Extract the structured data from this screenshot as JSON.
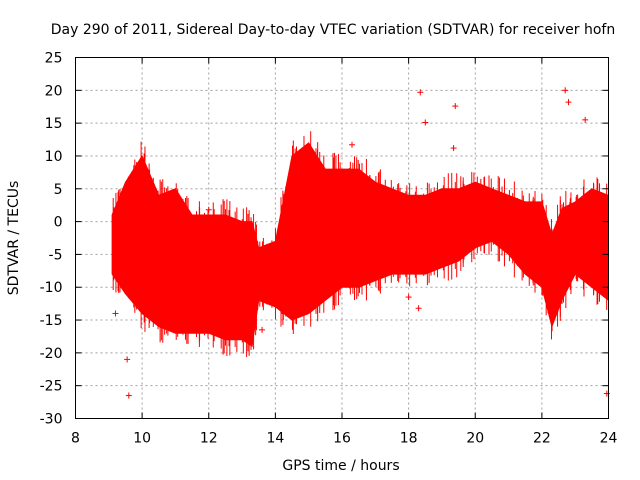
{
  "chart_data": {
    "type": "scatter",
    "title": "Day 290 of 2011, Sidereal Day-to-day VTEC variation (SDTVAR) for receiver hofn",
    "xlabel": "GPS time / hours",
    "ylabel": "SDTVAR / TECUs",
    "xlim": [
      8,
      24
    ],
    "ylim": [
      -30,
      25
    ],
    "x_ticks": [
      8,
      10,
      12,
      14,
      16,
      18,
      20,
      22,
      24
    ],
    "y_ticks": [
      -30,
      -25,
      -20,
      -15,
      -10,
      -5,
      0,
      5,
      10,
      15,
      20,
      25
    ],
    "grid": true,
    "marker": "+",
    "color": "#ff0000",
    "series": [
      {
        "name": "SDTVAR hofn",
        "band_x": [
          9.1,
          9.5,
          10.0,
          10.5,
          11.0,
          11.5,
          12.0,
          12.5,
          13.0,
          13.3,
          13.5,
          14.0,
          14.5,
          15.0,
          15.5,
          16.0,
          16.5,
          17.0,
          17.5,
          18.0,
          18.5,
          19.0,
          19.5,
          20.0,
          20.5,
          21.0,
          21.5,
          22.0,
          22.3,
          22.6,
          23.0,
          23.5,
          24.0
        ],
        "band_upper": [
          1,
          6,
          10,
          4,
          5,
          1,
          1,
          1,
          0,
          0,
          -4,
          -3,
          10,
          12,
          8,
          8,
          8,
          6,
          5,
          4,
          4,
          5,
          5,
          6,
          5,
          4,
          3,
          3,
          -2,
          2,
          3,
          5,
          4
        ],
        "band_lower": [
          -8,
          -11,
          -14,
          -16,
          -17,
          -17,
          -17,
          -18,
          -18,
          -19,
          -12,
          -13,
          -15,
          -14,
          -12,
          -10,
          -10,
          -9,
          -8,
          -8,
          -8,
          -7,
          -6,
          -4,
          -3,
          -5,
          -8,
          -10,
          -16,
          -12,
          -8,
          -10,
          -12
        ],
        "outliers": [
          {
            "x": 9.2,
            "y": -14
          },
          {
            "x": 9.6,
            "y": -26.5
          },
          {
            "x": 9.55,
            "y": -21
          },
          {
            "x": 12.0,
            "y": 1.8
          },
          {
            "x": 13.6,
            "y": -16.5
          },
          {
            "x": 15.2,
            "y": 9.2
          },
          {
            "x": 16.3,
            "y": 11.7
          },
          {
            "x": 18.0,
            "y": -11.5
          },
          {
            "x": 18.3,
            "y": -13.2
          },
          {
            "x": 18.35,
            "y": 19.7
          },
          {
            "x": 18.5,
            "y": 15.1
          },
          {
            "x": 19.4,
            "y": 17.6
          },
          {
            "x": 19.35,
            "y": 11.2
          },
          {
            "x": 22.8,
            "y": 18.2
          },
          {
            "x": 22.7,
            "y": 20.0
          },
          {
            "x": 23.3,
            "y": 15.5
          },
          {
            "x": 23.95,
            "y": -26.2
          }
        ]
      }
    ]
  }
}
